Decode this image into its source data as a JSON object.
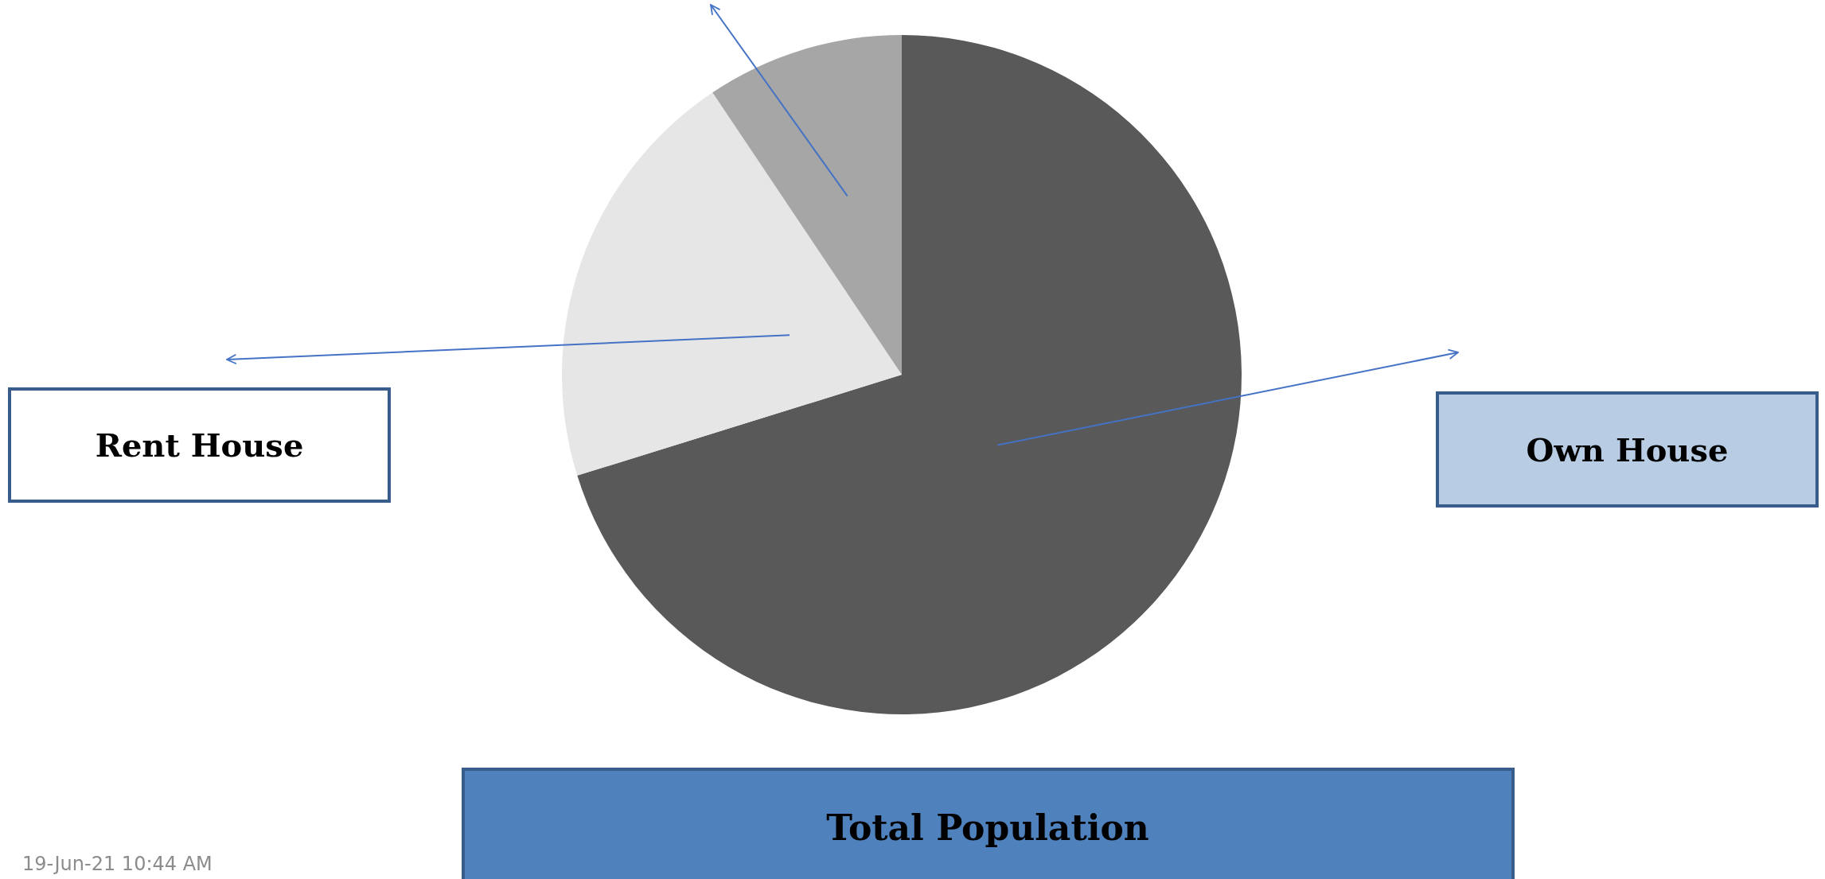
{
  "chart_data": {
    "type": "pie",
    "title": "Total Population",
    "categories": [
      "Own House",
      "Rent House",
      null
    ],
    "values": [
      70.2,
      20.4,
      9.4
    ],
    "colors": [
      "#595959",
      "#e6e6e6",
      "#a6a6a6"
    ],
    "annotations": [
      "19-Jun-21 10:44 AM"
    ]
  }
}
